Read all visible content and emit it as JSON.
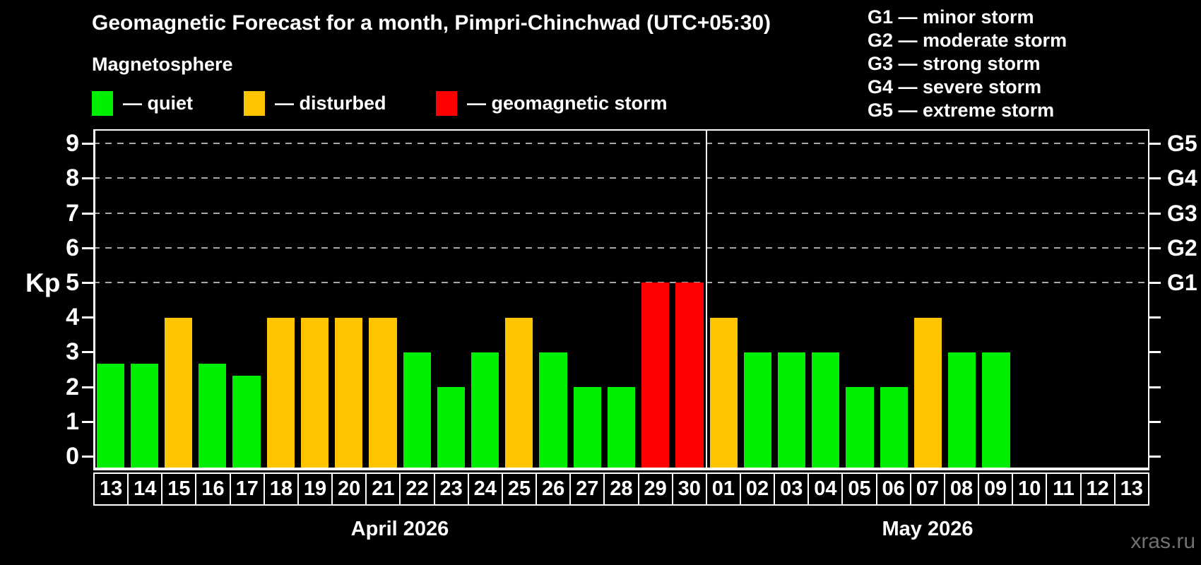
{
  "title": "Geomagnetic Forecast for a month, Pimpri-Chinchwad (UTC+05:30)",
  "subtitle": "Magnetosphere",
  "legend": {
    "items": [
      {
        "label": "— quiet",
        "color": "#00ee00",
        "status": "quiet"
      },
      {
        "label": "— disturbed",
        "color": "#ffc400",
        "status": "disturbed"
      },
      {
        "label": "— geomagnetic storm",
        "color": "#ff0000",
        "status": "storm"
      }
    ]
  },
  "g_legend": [
    "G1 — minor storm",
    "G2 — moderate storm",
    "G3 — strong storm",
    "G4 — severe storm",
    "G5 — extreme storm"
  ],
  "watermark": "xras.ru",
  "chart_data": {
    "type": "bar",
    "title": "Geomagnetic Forecast for a month, Pimpri-Chinchwad (UTC+05:30)",
    "ylabel_left": "Kp",
    "ylim": [
      -0.4,
      9.4
    ],
    "yticks": [
      0,
      1,
      2,
      3,
      4,
      5,
      6,
      7,
      8,
      9
    ],
    "gridlines_at": [
      5,
      6,
      7,
      8,
      9
    ],
    "grid": "dashed",
    "right_axis_labels": [
      {
        "label": "G1",
        "kp": 5
      },
      {
        "label": "G2",
        "kp": 6
      },
      {
        "label": "G3",
        "kp": 7
      },
      {
        "label": "G4",
        "kp": 8
      },
      {
        "label": "G5",
        "kp": 9
      }
    ],
    "colors": {
      "quiet": "#00ee00",
      "disturbed": "#ffc400",
      "storm": "#ff0000"
    },
    "months": [
      {
        "label": "April 2026",
        "days": 18
      },
      {
        "label": "May 2026",
        "days": 13
      }
    ],
    "days": [
      {
        "day": "13",
        "kp": 2.67,
        "status": "quiet"
      },
      {
        "day": "14",
        "kp": 2.67,
        "status": "quiet"
      },
      {
        "day": "15",
        "kp": 4,
        "status": "disturbed"
      },
      {
        "day": "16",
        "kp": 2.67,
        "status": "quiet"
      },
      {
        "day": "17",
        "kp": 2.33,
        "status": "quiet"
      },
      {
        "day": "18",
        "kp": 4,
        "status": "disturbed"
      },
      {
        "day": "19",
        "kp": 4,
        "status": "disturbed"
      },
      {
        "day": "20",
        "kp": 4,
        "status": "disturbed"
      },
      {
        "day": "21",
        "kp": 4,
        "status": "disturbed"
      },
      {
        "day": "22",
        "kp": 3,
        "status": "quiet"
      },
      {
        "day": "23",
        "kp": 2,
        "status": "quiet"
      },
      {
        "day": "24",
        "kp": 3,
        "status": "quiet"
      },
      {
        "day": "25",
        "kp": 4,
        "status": "disturbed"
      },
      {
        "day": "26",
        "kp": 3,
        "status": "quiet"
      },
      {
        "day": "27",
        "kp": 2,
        "status": "quiet"
      },
      {
        "day": "28",
        "kp": 2,
        "status": "quiet"
      },
      {
        "day": "29",
        "kp": 5,
        "status": "storm"
      },
      {
        "day": "30",
        "kp": 5,
        "status": "storm"
      },
      {
        "day": "01",
        "kp": 4,
        "status": "disturbed"
      },
      {
        "day": "02",
        "kp": 3,
        "status": "quiet"
      },
      {
        "day": "03",
        "kp": 3,
        "status": "quiet"
      },
      {
        "day": "04",
        "kp": 3,
        "status": "quiet"
      },
      {
        "day": "05",
        "kp": 2,
        "status": "quiet"
      },
      {
        "day": "06",
        "kp": 2,
        "status": "quiet"
      },
      {
        "day": "07",
        "kp": 4,
        "status": "disturbed"
      },
      {
        "day": "08",
        "kp": 3,
        "status": "quiet"
      },
      {
        "day": "09",
        "kp": 3,
        "status": "quiet"
      },
      {
        "day": "10",
        "kp": null,
        "status": "none"
      },
      {
        "day": "11",
        "kp": null,
        "status": "none"
      },
      {
        "day": "12",
        "kp": null,
        "status": "none"
      },
      {
        "day": "13",
        "kp": null,
        "status": "none"
      }
    ]
  }
}
